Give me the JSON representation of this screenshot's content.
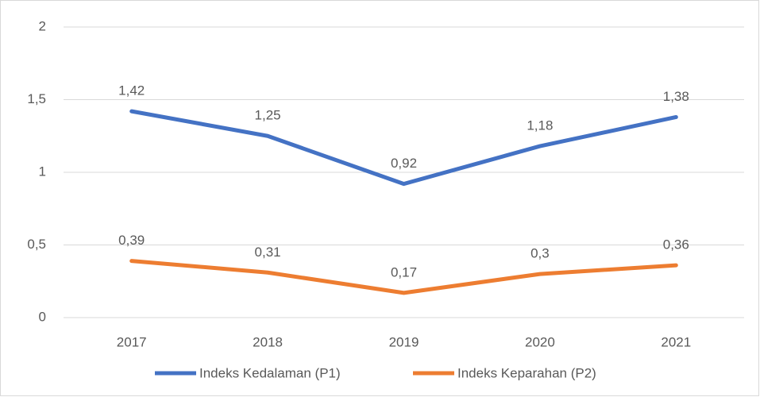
{
  "chart_data": {
    "type": "line",
    "categories": [
      "2017",
      "2018",
      "2019",
      "2020",
      "2021"
    ],
    "series": [
      {
        "name": "Indeks Kedalaman (P1)",
        "color": "#4472c4",
        "values": [
          1.42,
          1.25,
          0.92,
          1.18,
          1.38
        ],
        "value_labels": [
          "1,42",
          "1,25",
          "0,92",
          "1,18",
          "1,38"
        ]
      },
      {
        "name": "Indeks Keparahan (P2)",
        "color": "#ed7d31",
        "values": [
          0.39,
          0.31,
          0.17,
          0.3,
          0.36
        ],
        "value_labels": [
          "0,39",
          "0,31",
          "0,17",
          "0,3",
          "0,36"
        ]
      }
    ],
    "ylim": [
      0,
      2
    ],
    "yticks": [
      0,
      {
        "value": 0.5,
        "label": "0,5"
      },
      1,
      {
        "value": 1.5,
        "label": "1,5"
      },
      2
    ],
    "grid": true,
    "legend": "bottom"
  }
}
